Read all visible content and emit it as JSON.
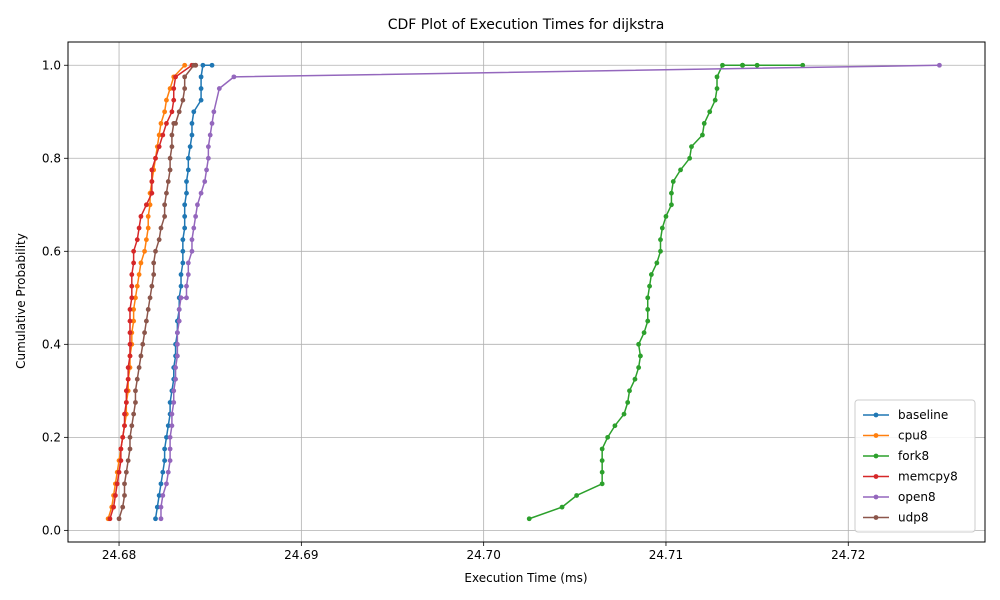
{
  "chart_data": {
    "type": "line",
    "title": "CDF Plot of Execution Times for dijkstra",
    "xlabel": "Execution Time (ms)",
    "ylabel": "Cumulative Probability",
    "xlim": [
      24.6772,
      24.7275
    ],
    "ylim": [
      -0.025,
      1.05
    ],
    "xticks": [
      24.68,
      24.69,
      24.7,
      24.71,
      24.72
    ],
    "xtick_labels": [
      "24.68",
      "24.69",
      "24.70",
      "24.71",
      "24.72"
    ],
    "yticks": [
      0.0,
      0.2,
      0.4,
      0.6,
      0.8,
      1.0
    ],
    "ytick_labels": [
      "0.0",
      "0.2",
      "0.4",
      "0.6",
      "0.8",
      "1.0"
    ],
    "grid": true,
    "legend_position": "lower-right",
    "series": [
      {
        "name": "baseline",
        "color": "#1f77b4",
        "x": [
          24.682,
          24.6821,
          24.6822,
          24.6823,
          24.6824,
          24.6825,
          24.6825,
          24.6826,
          24.6827,
          24.6828,
          24.6828,
          24.6829,
          24.683,
          24.683,
          24.6831,
          24.6831,
          24.6832,
          24.6832,
          24.6833,
          24.6833,
          24.6834,
          24.6834,
          24.6835,
          24.6835,
          24.6835,
          24.6836,
          24.6836,
          24.6836,
          24.6837,
          24.6837,
          24.6838,
          24.6838,
          24.6839,
          24.684,
          24.684,
          24.6841,
          24.6845,
          24.6845,
          24.6845,
          24.6846,
          24.6851
        ],
        "y": [
          0.025,
          0.05,
          0.075,
          0.1,
          0.125,
          0.15,
          0.175,
          0.2,
          0.225,
          0.25,
          0.275,
          0.3,
          0.325,
          0.35,
          0.375,
          0.4,
          0.425,
          0.45,
          0.475,
          0.5,
          0.525,
          0.55,
          0.575,
          0.6,
          0.625,
          0.65,
          0.675,
          0.7,
          0.725,
          0.75,
          0.775,
          0.8,
          0.825,
          0.85,
          0.875,
          0.9,
          0.925,
          0.95,
          0.975,
          1.0,
          1.0
        ]
      },
      {
        "name": "cpu8",
        "color": "#ff7f0e",
        "x": [
          24.6794,
          24.6796,
          24.6797,
          24.6798,
          24.6799,
          24.68,
          24.6801,
          24.6802,
          24.6803,
          24.6804,
          24.6804,
          24.6805,
          24.6805,
          24.6806,
          24.6806,
          24.6807,
          24.6807,
          24.6808,
          24.6808,
          24.6809,
          24.681,
          24.6811,
          24.6812,
          24.6814,
          24.6815,
          24.6816,
          24.6816,
          24.6817,
          24.6817,
          24.6818,
          24.6819,
          24.682,
          24.6821,
          24.6822,
          24.6823,
          24.6825,
          24.6826,
          24.6828,
          24.683,
          24.6836
        ],
        "y": [
          0.025,
          0.05,
          0.075,
          0.1,
          0.125,
          0.15,
          0.175,
          0.2,
          0.225,
          0.25,
          0.275,
          0.3,
          0.325,
          0.35,
          0.375,
          0.4,
          0.425,
          0.45,
          0.475,
          0.5,
          0.525,
          0.55,
          0.575,
          0.6,
          0.625,
          0.65,
          0.675,
          0.7,
          0.725,
          0.75,
          0.775,
          0.8,
          0.825,
          0.85,
          0.875,
          0.9,
          0.925,
          0.95,
          0.975,
          1.0
        ]
      },
      {
        "name": "fork8",
        "color": "#2ca02c",
        "x": [
          24.7025,
          24.7043,
          24.7051,
          24.7065,
          24.7065,
          24.7065,
          24.7065,
          24.7068,
          24.7072,
          24.7077,
          24.7079,
          24.708,
          24.7083,
          24.7085,
          24.7086,
          24.7085,
          24.7088,
          24.709,
          24.709,
          24.709,
          24.7091,
          24.7092,
          24.7095,
          24.7097,
          24.7097,
          24.7098,
          24.71,
          24.7103,
          24.7103,
          24.7104,
          24.7108,
          24.7113,
          24.7114,
          24.712,
          24.7121,
          24.7124,
          24.7127,
          24.7128,
          24.7128,
          24.7131,
          24.7142,
          24.7142,
          24.7142,
          24.715,
          24.7175
        ],
        "y": [
          0.025,
          0.05,
          0.075,
          0.1,
          0.125,
          0.15,
          0.175,
          0.2,
          0.225,
          0.25,
          0.275,
          0.3,
          0.325,
          0.35,
          0.375,
          0.4,
          0.425,
          0.45,
          0.475,
          0.5,
          0.525,
          0.55,
          0.575,
          0.6,
          0.625,
          0.65,
          0.675,
          0.7,
          0.725,
          0.75,
          0.775,
          0.8,
          0.825,
          0.85,
          0.875,
          0.9,
          0.925,
          0.95,
          0.975,
          1.0,
          1.0,
          1.0,
          1.0,
          1.0,
          1.0
        ]
      },
      {
        "name": "memcpy8",
        "color": "#d62728",
        "x": [
          24.6795,
          24.6797,
          24.6798,
          24.6799,
          24.68,
          24.6801,
          24.6801,
          24.6802,
          24.6803,
          24.6803,
          24.6804,
          24.6804,
          24.6805,
          24.6805,
          24.6806,
          24.6806,
          24.6806,
          24.6806,
          24.6806,
          24.6807,
          24.6807,
          24.6807,
          24.6808,
          24.6808,
          24.681,
          24.6811,
          24.6812,
          24.6815,
          24.6818,
          24.6818,
          24.6818,
          24.682,
          24.6822,
          24.6824,
          24.6826,
          24.6829,
          24.683,
          24.683,
          24.6831,
          24.684,
          24.6842
        ],
        "y": [
          0.025,
          0.05,
          0.075,
          0.1,
          0.125,
          0.15,
          0.175,
          0.2,
          0.225,
          0.25,
          0.275,
          0.3,
          0.325,
          0.35,
          0.375,
          0.4,
          0.425,
          0.45,
          0.475,
          0.5,
          0.525,
          0.55,
          0.575,
          0.6,
          0.625,
          0.65,
          0.675,
          0.7,
          0.725,
          0.75,
          0.775,
          0.8,
          0.825,
          0.85,
          0.875,
          0.9,
          0.925,
          0.95,
          0.975,
          1.0,
          1.0
        ]
      },
      {
        "name": "open8",
        "color": "#9467bd",
        "x": [
          24.6823,
          24.6823,
          24.6824,
          24.6826,
          24.6827,
          24.6828,
          24.6828,
          24.6828,
          24.6829,
          24.6829,
          24.683,
          24.683,
          24.6831,
          24.6831,
          24.6832,
          24.6832,
          24.6832,
          24.6833,
          24.6833,
          24.6834,
          24.6837,
          24.6837,
          24.6838,
          24.6838,
          24.684,
          24.684,
          24.6841,
          24.6842,
          24.6843,
          24.6845,
          24.6847,
          24.6848,
          24.6849,
          24.6849,
          24.685,
          24.6851,
          24.6852,
          24.6855,
          24.6863,
          24.725
        ],
        "y": [
          0.025,
          0.05,
          0.075,
          0.1,
          0.125,
          0.15,
          0.175,
          0.2,
          0.225,
          0.25,
          0.275,
          0.3,
          0.325,
          0.35,
          0.375,
          0.4,
          0.425,
          0.45,
          0.475,
          0.5,
          0.5,
          0.525,
          0.55,
          0.575,
          0.6,
          0.625,
          0.65,
          0.675,
          0.7,
          0.725,
          0.75,
          0.775,
          0.8,
          0.825,
          0.85,
          0.875,
          0.9,
          0.95,
          0.975,
          1.0
        ]
      },
      {
        "name": "udp8",
        "color": "#8c564b",
        "x": [
          24.68,
          24.6802,
          24.6803,
          24.6803,
          24.6804,
          24.6805,
          24.6806,
          24.6806,
          24.6807,
          24.6808,
          24.6809,
          24.6809,
          24.681,
          24.6811,
          24.6812,
          24.6813,
          24.6814,
          24.6815,
          24.6816,
          24.6817,
          24.6818,
          24.6819,
          24.6819,
          24.682,
          24.6822,
          24.6823,
          24.6825,
          24.6825,
          24.6826,
          24.6827,
          24.6828,
          24.6828,
          24.6829,
          24.6829,
          24.683,
          24.6831,
          24.6833,
          24.6835,
          24.6836,
          24.6836,
          24.6841,
          24.6842
        ],
        "y": [
          0.025,
          0.05,
          0.075,
          0.1,
          0.125,
          0.15,
          0.175,
          0.2,
          0.225,
          0.25,
          0.275,
          0.3,
          0.325,
          0.35,
          0.375,
          0.4,
          0.425,
          0.45,
          0.475,
          0.5,
          0.525,
          0.55,
          0.575,
          0.6,
          0.625,
          0.65,
          0.675,
          0.7,
          0.725,
          0.75,
          0.775,
          0.8,
          0.825,
          0.85,
          0.875,
          0.875,
          0.9,
          0.925,
          0.95,
          0.975,
          1.0,
          1.0
        ]
      }
    ]
  }
}
